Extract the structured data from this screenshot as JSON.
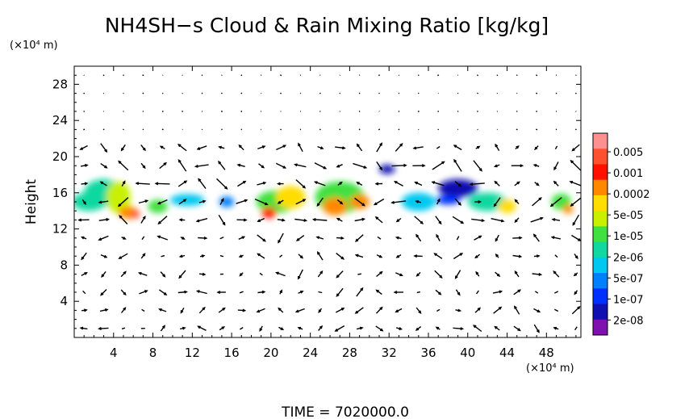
{
  "chart_data": {
    "type": "heatmap",
    "title": "NH4SH−s Cloud & Rain Mixing Ratio [kg/kg]",
    "ylabel": "Height",
    "y_unit_label": "(×10⁴ m)",
    "x_unit_label": "(×10⁴ m)",
    "x_ticks": [
      4,
      8,
      12,
      16,
      20,
      24,
      28,
      32,
      36,
      40,
      44,
      48
    ],
    "y_ticks": [
      4,
      8,
      12,
      16,
      20,
      24,
      28
    ],
    "xlim": [
      0,
      51.5
    ],
    "ylim": [
      0,
      30
    ],
    "colorbar": {
      "labels": [
        "0.005",
        "0.001",
        "0.0002",
        "5e-05",
        "1e-05",
        "2e-06",
        "5e-07",
        "1e-07",
        "2e-08"
      ],
      "colors": [
        "#ff9090",
        "#ff5030",
        "#ff1000",
        "#ff8800",
        "#ffdd00",
        "#c8f000",
        "#40e040",
        "#10d8a0",
        "#00c8f0",
        "#0080ff",
        "#0030ff",
        "#1010b0",
        "#8010b0"
      ]
    },
    "cloud_cells": [
      {
        "x": 1.5,
        "y": 15.0,
        "w": 3.5,
        "h": 2.0,
        "level": 7
      },
      {
        "x": 3.0,
        "y": 16.0,
        "w": 4.0,
        "h": 3.0,
        "level": 7
      },
      {
        "x": 4.5,
        "y": 15.5,
        "w": 2.5,
        "h": 3.5,
        "level": 5
      },
      {
        "x": 5.5,
        "y": 13.8,
        "w": 2.0,
        "h": 1.4,
        "level": 3
      },
      {
        "x": 6.2,
        "y": 13.6,
        "w": 1.0,
        "h": 0.8,
        "level": 1
      },
      {
        "x": 8.5,
        "y": 14.5,
        "w": 2.0,
        "h": 1.5,
        "level": 6
      },
      {
        "x": 11.5,
        "y": 15.2,
        "w": 3.5,
        "h": 1.3,
        "level": 8
      },
      {
        "x": 15.5,
        "y": 15.0,
        "w": 1.5,
        "h": 1.2,
        "level": 9
      },
      {
        "x": 20.5,
        "y": 15.0,
        "w": 4.0,
        "h": 2.5,
        "level": 6
      },
      {
        "x": 19.8,
        "y": 13.8,
        "w": 1.5,
        "h": 1.2,
        "level": 2
      },
      {
        "x": 22.0,
        "y": 15.5,
        "w": 3.0,
        "h": 2.5,
        "level": 4
      },
      {
        "x": 27.0,
        "y": 15.5,
        "w": 5.0,
        "h": 3.5,
        "level": 6
      },
      {
        "x": 26.5,
        "y": 14.5,
        "w": 2.5,
        "h": 2.0,
        "level": 3
      },
      {
        "x": 29.0,
        "y": 15.0,
        "w": 2.0,
        "h": 1.6,
        "level": 3
      },
      {
        "x": 31.8,
        "y": 18.6,
        "w": 1.6,
        "h": 1.0,
        "level": 11
      },
      {
        "x": 35.0,
        "y": 15.0,
        "w": 3.5,
        "h": 2.0,
        "level": 8
      },
      {
        "x": 39.0,
        "y": 16.5,
        "w": 4.0,
        "h": 2.0,
        "level": 11
      },
      {
        "x": 38.0,
        "y": 15.2,
        "w": 2.5,
        "h": 1.0,
        "level": 10
      },
      {
        "x": 42.0,
        "y": 15.0,
        "w": 4.0,
        "h": 2.0,
        "level": 7
      },
      {
        "x": 44.0,
        "y": 14.5,
        "w": 1.8,
        "h": 1.5,
        "level": 4
      },
      {
        "x": 49.5,
        "y": 15.0,
        "w": 2.0,
        "h": 1.8,
        "level": 6
      },
      {
        "x": 50.2,
        "y": 14.2,
        "w": 1.0,
        "h": 1.0,
        "level": 3
      }
    ]
  },
  "footer": {
    "time_label": "TIME  =  7020000.0"
  }
}
